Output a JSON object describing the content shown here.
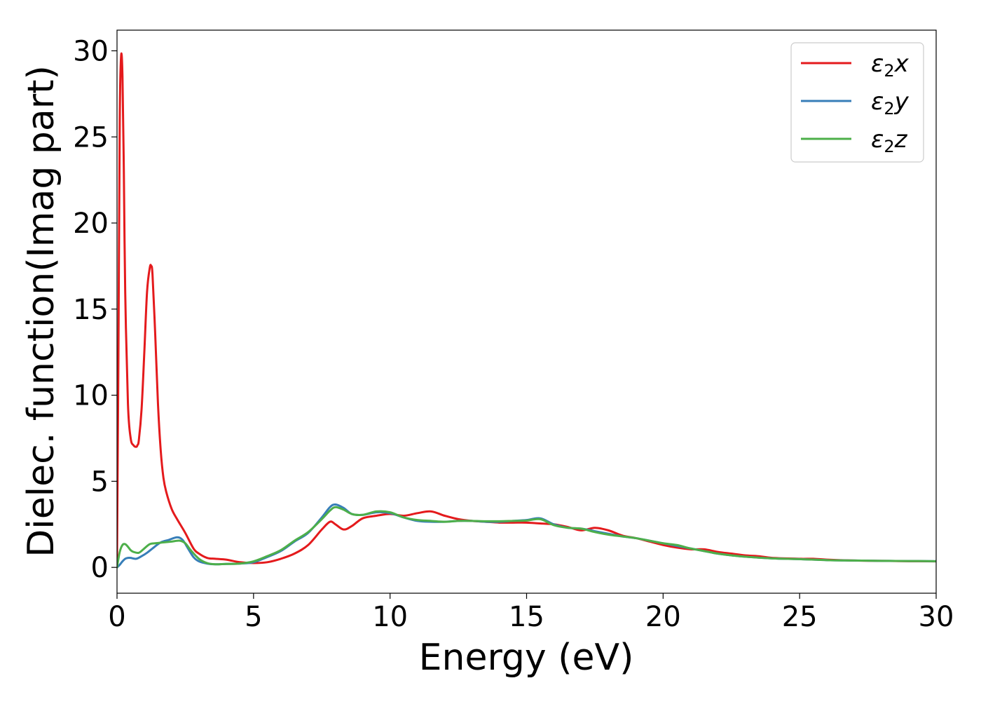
{
  "chart_data": {
    "type": "line",
    "title": "",
    "xlabel": "Energy (eV)",
    "ylabel": "Dielec. function(Imag part)",
    "xlim": [
      0,
      30
    ],
    "ylim": [
      -1.5,
      31.2
    ],
    "xticks": [
      0,
      5,
      10,
      15,
      20,
      25,
      30
    ],
    "xtick_labels": [
      "0",
      "5",
      "10",
      "15",
      "20",
      "25",
      "30"
    ],
    "yticks": [
      0,
      5,
      10,
      15,
      20,
      25,
      30
    ],
    "ytick_labels": [
      "0",
      "5",
      "10",
      "15",
      "20",
      "25",
      "30"
    ],
    "grid": false,
    "legend_position": "top-right",
    "series": [
      {
        "name": "ε2x",
        "name_main": "ε",
        "name_sub": "2",
        "name_tail": "x",
        "color": "#e41a1c",
        "x": [
          0,
          0.05,
          0.1,
          0.15,
          0.2,
          0.25,
          0.3,
          0.4,
          0.5,
          0.6,
          0.7,
          0.75,
          0.8,
          0.9,
          1.0,
          1.1,
          1.2,
          1.25,
          1.3,
          1.4,
          1.5,
          1.6,
          1.7,
          1.8,
          2.0,
          2.2,
          2.5,
          2.8,
          3.0,
          3.3,
          3.6,
          4.0,
          4.5,
          5.0,
          5.5,
          6.0,
          6.5,
          7.0,
          7.5,
          7.8,
          8.0,
          8.3,
          8.6,
          9.0,
          9.5,
          10.0,
          10.5,
          11.0,
          11.5,
          12.0,
          12.5,
          13.0,
          13.5,
          14.0,
          14.5,
          15.0,
          15.5,
          16.0,
          16.5,
          17.0,
          17.5,
          18.0,
          18.5,
          19.0,
          19.5,
          20.0,
          20.5,
          21.0,
          21.5,
          22.0,
          22.5,
          23.0,
          23.5,
          24.0,
          25.0,
          25.5,
          26.0,
          27.0,
          28.0,
          29.0,
          30.0
        ],
        "y": [
          0.5,
          12,
          26,
          29.7,
          28.5,
          23,
          16,
          9.5,
          7.5,
          7.1,
          7.0,
          7.1,
          7.4,
          9.2,
          12.5,
          16,
          17.4,
          17.5,
          17.0,
          13.5,
          9.5,
          6.8,
          5.2,
          4.4,
          3.4,
          2.8,
          2.0,
          1.1,
          0.8,
          0.55,
          0.5,
          0.45,
          0.3,
          0.25,
          0.3,
          0.5,
          0.8,
          1.3,
          2.2,
          2.65,
          2.5,
          2.2,
          2.4,
          2.85,
          3.0,
          3.1,
          3.0,
          3.15,
          3.25,
          3.0,
          2.8,
          2.7,
          2.65,
          2.6,
          2.6,
          2.6,
          2.55,
          2.5,
          2.35,
          2.15,
          2.3,
          2.15,
          1.85,
          1.7,
          1.5,
          1.3,
          1.15,
          1.05,
          1.05,
          0.9,
          0.8,
          0.7,
          0.65,
          0.55,
          0.5,
          0.5,
          0.45,
          0.4,
          0.38,
          0.36,
          0.35
        ]
      },
      {
        "name": "ε2y",
        "name_main": "ε",
        "name_sub": "2",
        "name_tail": "y",
        "color": "#377eb8",
        "x": [
          0,
          0.1,
          0.2,
          0.3,
          0.4,
          0.5,
          0.7,
          0.9,
          1.1,
          1.3,
          1.6,
          1.9,
          2.2,
          2.4,
          2.6,
          2.8,
          3.0,
          3.3,
          3.6,
          4.0,
          4.5,
          5.0,
          5.5,
          6.0,
          6.5,
          7.0,
          7.5,
          7.8,
          8.0,
          8.3,
          8.6,
          9.0,
          9.5,
          10.0,
          10.5,
          11.0,
          11.5,
          12.0,
          12.5,
          13.0,
          13.5,
          14.0,
          14.5,
          15.0,
          15.5,
          16.0,
          16.5,
          17.0,
          17.5,
          18.0,
          18.5,
          19.0,
          19.5,
          20.0,
          20.5,
          21.0,
          21.5,
          22.0,
          22.5,
          23.0,
          24.0,
          25.0,
          26.0,
          27.0,
          28.0,
          29.0,
          30.0
        ],
        "y": [
          0.0,
          0.15,
          0.35,
          0.5,
          0.55,
          0.55,
          0.5,
          0.65,
          0.85,
          1.1,
          1.45,
          1.6,
          1.75,
          1.6,
          1.1,
          0.6,
          0.35,
          0.22,
          0.18,
          0.2,
          0.22,
          0.3,
          0.6,
          0.95,
          1.5,
          2.0,
          2.9,
          3.5,
          3.65,
          3.45,
          3.1,
          3.05,
          3.2,
          3.15,
          2.9,
          2.7,
          2.65,
          2.65,
          2.7,
          2.7,
          2.65,
          2.65,
          2.7,
          2.75,
          2.85,
          2.5,
          2.3,
          2.25,
          2.1,
          1.95,
          1.8,
          1.7,
          1.55,
          1.4,
          1.25,
          1.1,
          0.95,
          0.8,
          0.7,
          0.62,
          0.52,
          0.48,
          0.42,
          0.4,
          0.38,
          0.37,
          0.36
        ]
      },
      {
        "name": "ε2z",
        "name_main": "ε",
        "name_sub": "2",
        "name_tail": "z",
        "color": "#4daf4a",
        "x": [
          0,
          0.1,
          0.2,
          0.3,
          0.4,
          0.5,
          0.6,
          0.8,
          1.0,
          1.2,
          1.4,
          1.7,
          2.0,
          2.3,
          2.5,
          2.7,
          3.0,
          3.3,
          3.6,
          4.0,
          4.5,
          5.0,
          5.5,
          6.0,
          6.5,
          7.0,
          7.5,
          7.8,
          8.0,
          8.3,
          8.6,
          9.0,
          9.5,
          10.0,
          10.5,
          11.0,
          11.5,
          12.0,
          12.5,
          13.0,
          13.5,
          14.0,
          14.5,
          15.0,
          15.5,
          16.0,
          16.5,
          17.0,
          17.5,
          18.0,
          18.5,
          19.0,
          19.5,
          20.0,
          20.5,
          21.0,
          21.5,
          22.0,
          22.5,
          23.0,
          24.0,
          25.0,
          26.0,
          27.0,
          28.0,
          29.0,
          30.0
        ],
        "y": [
          0.0,
          0.9,
          1.3,
          1.35,
          1.2,
          1.0,
          0.9,
          0.85,
          1.1,
          1.35,
          1.4,
          1.45,
          1.5,
          1.55,
          1.4,
          1.0,
          0.5,
          0.25,
          0.18,
          0.2,
          0.22,
          0.35,
          0.65,
          1.0,
          1.55,
          2.05,
          2.8,
          3.3,
          3.5,
          3.35,
          3.1,
          3.05,
          3.25,
          3.2,
          2.9,
          2.75,
          2.7,
          2.65,
          2.7,
          2.7,
          2.68,
          2.68,
          2.7,
          2.72,
          2.8,
          2.45,
          2.3,
          2.25,
          2.05,
          1.9,
          1.8,
          1.7,
          1.55,
          1.4,
          1.3,
          1.1,
          0.95,
          0.8,
          0.7,
          0.62,
          0.52,
          0.48,
          0.42,
          0.4,
          0.38,
          0.37,
          0.36
        ]
      }
    ]
  }
}
